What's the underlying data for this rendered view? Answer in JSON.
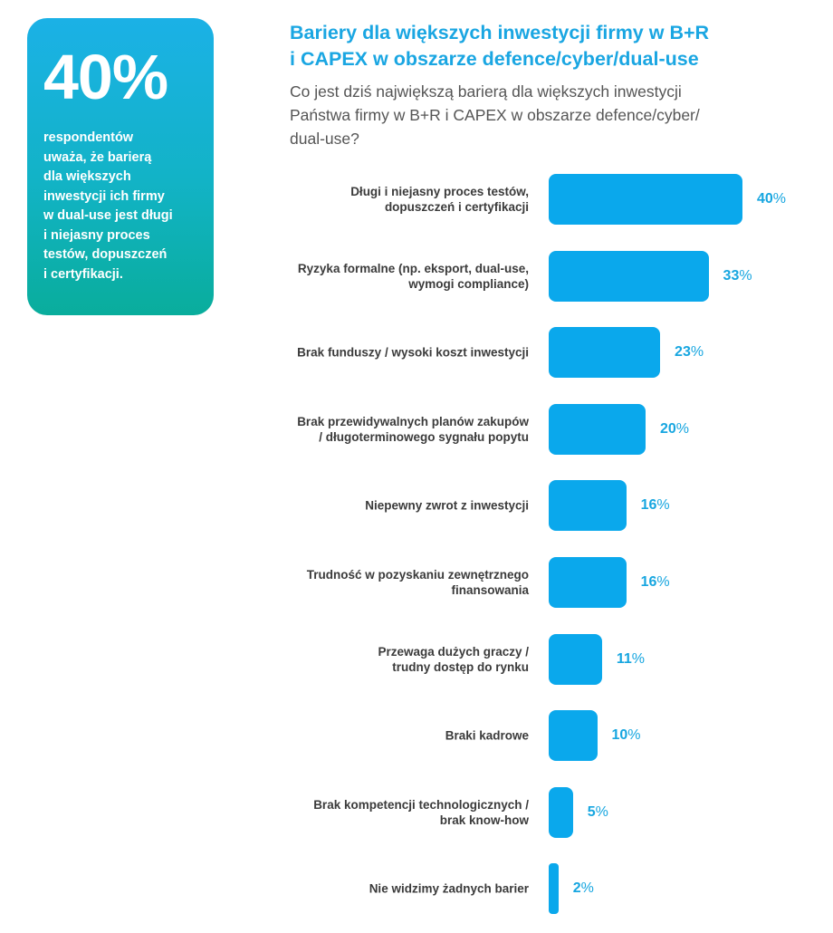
{
  "stat": {
    "big": "40%",
    "text": "respondentów\nuważa, że barierą\ndla większych\ninwestycji ich firmy\nw dual-use jest długi\ni niejasny proces\ntestów, dopuszczeń\ni certyfikacji."
  },
  "title": "Bariery dla większych inwestycji firmy w B+R\ni CAPEX w obszarze defence/cyber/dual-use",
  "subtitle": "Co jest dziś największą barierą dla większych inwestycji\nPaństwa firmy w B+R i CAPEX w obszarze defence/cyber/\ndual-use?",
  "colors": {
    "bar": "#0aa8ec",
    "title": "#1aa6e2",
    "value": "#17a6e0",
    "card_top": "#1bb1e6",
    "card_bottom": "#09ad9c"
  },
  "chart_data": {
    "type": "bar",
    "orientation": "horizontal",
    "categories": [
      "Długi i niejasny proces testów,\ndopuszczeń i certyfikacji",
      "Ryzyka formalne (np. eksport, dual-use,\nwymogi compliance)",
      "Brak funduszy / wysoki koszt inwestycji",
      "Brak przewidywalnych planów zakupów\n/ długoterminowego sygnału popytu",
      "Niepewny zwrot z inwestycji",
      "Trudność w pozyskaniu zewnętrznego\nfinansowania",
      "Przewaga dużych graczy /\ntrudny dostęp do rynku",
      "Braki kadrowe",
      "Brak kompetencji technologicznych /\nbrak know-how",
      "Nie widzimy żadnych barier"
    ],
    "values": [
      40,
      33,
      23,
      20,
      16,
      16,
      11,
      10,
      5,
      2
    ],
    "unit": "%"
  }
}
